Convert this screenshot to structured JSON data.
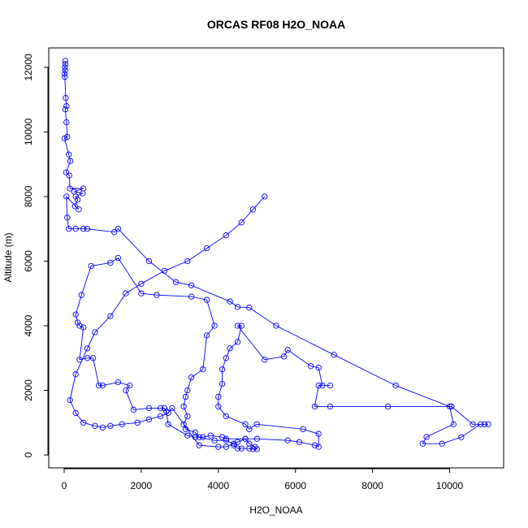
{
  "chart_data": {
    "type": "line",
    "title": "ORCAS RF08 H2O_NOAA",
    "xlabel": "H2O_NOAA",
    "ylabel": "Altitude (m)",
    "xlim": [
      -400,
      11400
    ],
    "ylim": [
      -400,
      12600
    ],
    "xticks": [
      0,
      2000,
      4000,
      6000,
      8000,
      10000
    ],
    "yticks": [
      0,
      2000,
      4000,
      6000,
      8000,
      10000,
      12000
    ],
    "grid": false,
    "series": [
      {
        "color": "#0000ff",
        "marker": "open-circle",
        "points": [
          [
            30,
            12200
          ],
          [
            30,
            12100
          ],
          [
            20,
            12000
          ],
          [
            25,
            11900
          ],
          [
            10,
            11800
          ],
          [
            20,
            11700
          ],
          [
            40,
            11050
          ],
          [
            60,
            10800
          ],
          [
            30,
            10700
          ],
          [
            60,
            10300
          ],
          [
            80,
            9850
          ],
          [
            10,
            9800
          ],
          [
            120,
            9300
          ],
          [
            160,
            9100
          ],
          [
            50,
            8750
          ],
          [
            130,
            8650
          ],
          [
            150,
            8250
          ],
          [
            500,
            8250
          ],
          [
            260,
            8150
          ],
          [
            480,
            8100
          ],
          [
            300,
            8000
          ],
          [
            350,
            7900
          ],
          [
            280,
            7700
          ],
          [
            380,
            7600
          ],
          [
            60,
            8000
          ],
          [
            80,
            7350
          ],
          [
            120,
            7000
          ],
          [
            300,
            7000
          ],
          [
            500,
            7000
          ],
          [
            600,
            7000
          ],
          [
            1300,
            6900
          ],
          [
            1400,
            7000
          ],
          [
            2200,
            6000
          ],
          [
            2900,
            5350
          ],
          [
            3300,
            5250
          ],
          [
            4300,
            4750
          ],
          [
            4500,
            4580
          ],
          [
            4800,
            4560
          ],
          [
            5500,
            4000
          ],
          [
            7000,
            3100
          ],
          [
            8600,
            2150
          ],
          [
            10000,
            1500
          ],
          [
            10100,
            950
          ],
          [
            9400,
            560
          ],
          [
            9300,
            350
          ],
          [
            9800,
            350
          ],
          [
            10300,
            550
          ],
          [
            10800,
            950
          ],
          [
            11000,
            950
          ],
          [
            10900,
            950
          ],
          [
            10600,
            950
          ],
          [
            10050,
            1500
          ],
          [
            8400,
            1500
          ],
          [
            6900,
            1500
          ],
          [
            6500,
            1500
          ],
          [
            6600,
            2150
          ],
          [
            6900,
            2150
          ],
          [
            6700,
            2150
          ],
          [
            6600,
            2700
          ],
          [
            6400,
            2750
          ],
          [
            5800,
            3250
          ],
          [
            5700,
            3050
          ],
          [
            5200,
            2950
          ],
          [
            4500,
            4000
          ],
          [
            4600,
            4000
          ],
          [
            4500,
            3500
          ],
          [
            4300,
            3300
          ],
          [
            4200,
            3000
          ],
          [
            4100,
            2650
          ],
          [
            4100,
            2200
          ],
          [
            4000,
            1800
          ],
          [
            4000,
            1500
          ],
          [
            4200,
            1200
          ],
          [
            4700,
            950
          ],
          [
            4800,
            800
          ],
          [
            5000,
            950
          ],
          [
            6200,
            800
          ],
          [
            6600,
            650
          ],
          [
            6600,
            250
          ],
          [
            6500,
            300
          ],
          [
            6100,
            400
          ],
          [
            5800,
            450
          ],
          [
            5000,
            500
          ],
          [
            4700,
            500
          ],
          [
            4500,
            400
          ],
          [
            4400,
            300
          ],
          [
            4500,
            200
          ],
          [
            4600,
            200
          ],
          [
            4800,
            200
          ],
          [
            4900,
            180
          ],
          [
            5000,
            180
          ],
          [
            4950,
            250
          ],
          [
            4800,
            350
          ],
          [
            4700,
            500
          ],
          [
            4200,
            500
          ],
          [
            4100,
            550
          ],
          [
            3800,
            600
          ],
          [
            3600,
            550
          ],
          [
            3400,
            550
          ],
          [
            3200,
            600
          ],
          [
            2700,
            950
          ],
          [
            2650,
            1350
          ],
          [
            2600,
            1450
          ],
          [
            2500,
            1450
          ],
          [
            2200,
            1450
          ],
          [
            1800,
            1400
          ],
          [
            1600,
            2000
          ],
          [
            1700,
            2150
          ],
          [
            1400,
            2250
          ],
          [
            1000,
            2150
          ],
          [
            900,
            2150
          ],
          [
            750,
            3000
          ],
          [
            600,
            3000
          ],
          [
            400,
            2950
          ],
          [
            500,
            3950
          ],
          [
            400,
            4000
          ],
          [
            350,
            4100
          ],
          [
            300,
            4350
          ],
          [
            450,
            4950
          ],
          [
            700,
            5850
          ],
          [
            1200,
            5950
          ],
          [
            1400,
            6100
          ],
          [
            2000,
            5000
          ],
          [
            2400,
            4950
          ],
          [
            3300,
            4900
          ],
          [
            3700,
            4800
          ],
          [
            3900,
            4000
          ],
          [
            3700,
            3700
          ],
          [
            3600,
            2650
          ],
          [
            3300,
            2400
          ],
          [
            3200,
            2000
          ],
          [
            3150,
            1800
          ],
          [
            3100,
            1500
          ],
          [
            3200,
            1200
          ],
          [
            3100,
            950
          ],
          [
            3150,
            800
          ],
          [
            3400,
            700
          ],
          [
            3500,
            550
          ],
          [
            3900,
            450
          ],
          [
            4200,
            450
          ],
          [
            4400,
            350
          ],
          [
            4200,
            250
          ],
          [
            4000,
            250
          ],
          [
            3500,
            300
          ],
          [
            2800,
            1450
          ],
          [
            2700,
            1300
          ],
          [
            2500,
            1200
          ],
          [
            2200,
            1100
          ],
          [
            1900,
            1000
          ],
          [
            1500,
            950
          ],
          [
            1200,
            900
          ],
          [
            1000,
            850
          ],
          [
            800,
            900
          ],
          [
            500,
            1000
          ],
          [
            300,
            1300
          ],
          [
            150,
            1700
          ],
          [
            300,
            2500
          ],
          [
            600,
            3300
          ],
          [
            800,
            3800
          ],
          [
            1200,
            4300
          ],
          [
            1600,
            5000
          ],
          [
            2000,
            5300
          ],
          [
            2600,
            5700
          ],
          [
            3200,
            6000
          ],
          [
            3700,
            6400
          ],
          [
            4200,
            6800
          ],
          [
            4600,
            7200
          ],
          [
            4900,
            7600
          ],
          [
            5200,
            8000
          ]
        ]
      }
    ]
  }
}
